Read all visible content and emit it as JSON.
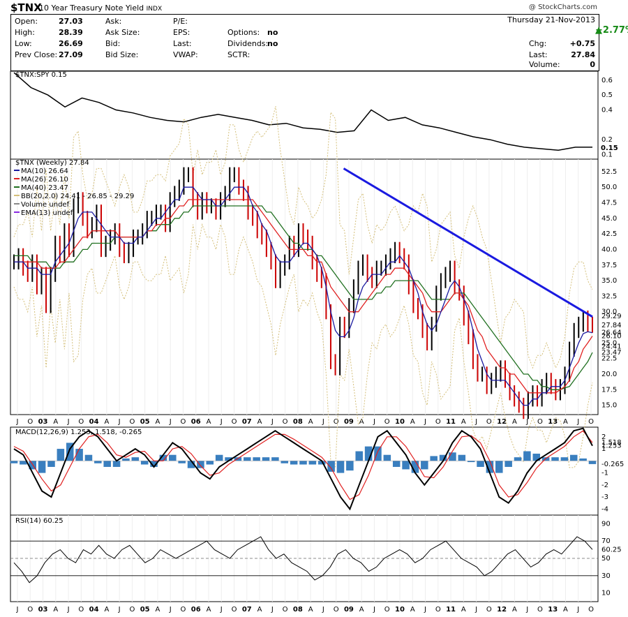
{
  "header": {
    "symbol": "$TNX",
    "name": "10 Year Treasury Note Yield",
    "exchange": "INDX",
    "credit": "@ StockCharts.com",
    "date": "Thursday  21-Nov-2013",
    "pct_change": "+2.77%",
    "quote": [
      {
        "label": "Open:",
        "value": "27.03"
      },
      {
        "label": "High:",
        "value": "28.39"
      },
      {
        "label": "Low:",
        "value": "26.69"
      },
      {
        "label": "Prev Close:",
        "value": "27.09"
      },
      {
        "label": "Ask:",
        "value": ""
      },
      {
        "label": "Ask Size:",
        "value": ""
      },
      {
        "label": "Bid:",
        "value": ""
      },
      {
        "label": "Bid Size:",
        "value": ""
      },
      {
        "label": "P/E:",
        "value": ""
      },
      {
        "label": "EPS:",
        "value": ""
      },
      {
        "label": "Last:",
        "value": ""
      },
      {
        "label": "VWAP:",
        "value": ""
      },
      {
        "label": "",
        "value": ""
      },
      {
        "label": "Options:",
        "value": "no"
      },
      {
        "label": "Dividends:",
        "value": "no"
      },
      {
        "label": "SCTR:",
        "value": ""
      },
      {
        "label": "Chg:",
        "value": "+0.75"
      },
      {
        "label": "Last:",
        "value": "27.84"
      },
      {
        "label": "Volume:",
        "value": "0"
      }
    ]
  },
  "colors": {
    "price_up": "#000000",
    "price_down": "#cc0000",
    "ma10": "#1a1aa0",
    "ma26": "#e02020",
    "ma40": "#207020",
    "bb": "#d4bf7a",
    "trendline": "#1a1ae0",
    "macd_line": "#000000",
    "signal_line": "#e02020",
    "histogram": "#3a7fbf",
    "rsi": "#000000",
    "rsi_fill": "#7a3a3a",
    "ema13": "#8a2be2"
  },
  "x_axis_labels": [
    "J",
    "O",
    "03",
    "A",
    "J",
    "O",
    "04",
    "A",
    "J",
    "O",
    "05",
    "A",
    "J",
    "O",
    "06",
    "A",
    "J",
    "O",
    "07",
    "A",
    "J",
    "O",
    "08",
    "A",
    "J",
    "O",
    "09",
    "A",
    "J",
    "O",
    "10",
    "A",
    "J",
    "O",
    "11",
    "A",
    "J",
    "O",
    "12",
    "A",
    "J",
    "O",
    "13",
    "A",
    "J",
    "O"
  ],
  "chart_data": [
    {
      "type": "line",
      "title": "$TNX:SPY 0.15",
      "series": [
        {
          "name": "$TNX:SPY",
          "values": [
            0.65,
            0.55,
            0.5,
            0.42,
            0.48,
            0.45,
            0.4,
            0.38,
            0.35,
            0.33,
            0.32,
            0.35,
            0.37,
            0.35,
            0.33,
            0.3,
            0.31,
            0.28,
            0.27,
            0.25,
            0.26,
            0.4,
            0.33,
            0.35,
            0.3,
            0.28,
            0.25,
            0.22,
            0.2,
            0.17,
            0.15,
            0.14,
            0.13,
            0.15,
            0.15
          ]
        }
      ],
      "ylim": [
        0.07,
        0.66
      ],
      "yticks": [
        0.1,
        0.2,
        0.4,
        0.5,
        0.6
      ],
      "last_value_label": "0.15"
    },
    {
      "type": "line",
      "title": "$TNX (Weekly) 27.84",
      "legend": [
        {
          "name": "MA(10)",
          "value": "26.64"
        },
        {
          "name": "MA(26)",
          "value": "26.10"
        },
        {
          "name": "MA(40)",
          "value": "23.47"
        },
        {
          "name": "BB(20,2.0)",
          "value": "24.41 - 26.85 - 29.29"
        },
        {
          "name": "Volume",
          "value": "undef"
        },
        {
          "name": "EMA(13)",
          "value": "undef"
        }
      ],
      "price": [
        38,
        39,
        37,
        36,
        38,
        34,
        36,
        31,
        36,
        41,
        39,
        43,
        40,
        47,
        48,
        45,
        43,
        44,
        46,
        40,
        41,
        42,
        43,
        40,
        39,
        40,
        42,
        42,
        43,
        45,
        45,
        46,
        46,
        44,
        48,
        49,
        50,
        52,
        52,
        48,
        46,
        48,
        47,
        47,
        46,
        48,
        49,
        52,
        52,
        50,
        49,
        46,
        45,
        43,
        42,
        40,
        38,
        35,
        37,
        38,
        41,
        40,
        43,
        42,
        41,
        38,
        36,
        35,
        30,
        22,
        21,
        28,
        27,
        31,
        34,
        37,
        38,
        36,
        35,
        37,
        37,
        38,
        39,
        40,
        39,
        38,
        34,
        31,
        30,
        27,
        25,
        28,
        33,
        35,
        36,
        37,
        34,
        33,
        29,
        26,
        22,
        20,
        20,
        18,
        19,
        20,
        21,
        19,
        17,
        16,
        15,
        14,
        16,
        17,
        16,
        18,
        19,
        18,
        17,
        18,
        20,
        24,
        27,
        28,
        29,
        28,
        27.84
      ],
      "ma10": [
        38,
        38,
        38,
        37,
        37,
        37,
        36,
        36,
        36,
        38,
        39,
        40,
        41,
        43,
        45,
        46,
        46,
        46,
        45,
        44,
        43,
        42,
        42,
        42,
        41,
        41,
        41,
        42,
        42,
        43,
        44,
        45,
        45,
        46,
        47,
        48,
        48,
        50,
        50,
        50,
        49,
        48,
        48,
        48,
        47,
        47,
        48,
        49,
        50,
        50,
        50,
        49,
        47,
        46,
        44,
        43,
        41,
        39,
        38,
        38,
        38,
        39,
        40,
        41,
        41,
        40,
        39,
        37,
        34,
        30,
        27,
        26,
        26,
        27,
        29,
        32,
        34,
        35,
        36,
        36,
        36,
        37,
        38,
        38,
        39,
        38,
        37,
        35,
        33,
        30,
        28,
        27,
        28,
        30,
        32,
        34,
        35,
        34,
        32,
        30,
        27,
        24,
        22,
        20,
        19,
        19,
        19,
        19,
        18,
        17,
        16,
        15,
        15,
        16,
        16,
        17,
        17,
        18,
        18,
        18,
        19,
        21,
        23,
        25,
        26.5,
        26.8,
        26.64
      ],
      "ma26": [
        38,
        38,
        38,
        38,
        38,
        38,
        37,
        37,
        37,
        37,
        38,
        38,
        39,
        40,
        41,
        42,
        42,
        43,
        43,
        43,
        43,
        43,
        43,
        42,
        42,
        42,
        42,
        42,
        42,
        43,
        43,
        44,
        44,
        45,
        45,
        46,
        47,
        47,
        48,
        48,
        48,
        48,
        48,
        48,
        48,
        48,
        48,
        48,
        48,
        48,
        48,
        48,
        48,
        47,
        46,
        45,
        44,
        43,
        42,
        41,
        40,
        40,
        40,
        40,
        39,
        39,
        38,
        38,
        36,
        34,
        33,
        32,
        31,
        30,
        30,
        30,
        31,
        32,
        33,
        34,
        35,
        36,
        36,
        37,
        37,
        37,
        36,
        35,
        34,
        33,
        31,
        30,
        30,
        30,
        31,
        32,
        33,
        33,
        32,
        31,
        29,
        27,
        26,
        24,
        23,
        22,
        21,
        21,
        20,
        20,
        19,
        18,
        17,
        17,
        17,
        17,
        17,
        17,
        17,
        17.5,
        18,
        19,
        21,
        22,
        24,
        25,
        26.1
      ],
      "ma40": [
        39,
        39,
        39,
        39,
        38,
        38,
        38,
        38,
        37,
        37,
        37,
        38,
        38,
        38,
        39,
        40,
        40,
        41,
        41,
        41,
        41,
        41,
        42,
        42,
        42,
        42,
        42,
        42,
        42,
        43,
        43,
        43,
        44,
        44,
        44,
        45,
        45,
        46,
        46,
        47,
        47,
        47,
        47,
        47,
        47,
        47,
        47,
        47,
        47,
        47,
        47,
        47,
        47,
        47,
        47,
        46,
        46,
        45,
        44,
        43,
        42,
        41,
        41,
        40,
        40,
        40,
        39,
        39,
        38,
        37,
        36,
        35,
        34,
        33,
        32,
        32,
        32,
        32,
        32,
        33,
        33,
        34,
        34,
        35,
        35,
        35,
        35,
        35,
        35,
        34,
        33,
        32,
        32,
        32,
        32,
        32,
        33,
        33,
        33,
        32,
        31,
        30,
        29,
        28,
        27,
        26,
        25,
        24,
        23,
        22,
        21,
        20,
        20,
        19,
        19,
        18,
        18,
        17.5,
        17.5,
        17.5,
        17.8,
        18,
        19,
        20,
        21,
        22,
        23.47
      ],
      "trendline": [
        [
          0.57,
          53
        ],
        [
          1.0,
          29.2
        ]
      ],
      "right_axis_labels": [
        "52.5",
        "50.0",
        "47.5",
        "45.0",
        "42.5",
        "40.0",
        "37.5",
        "35.0",
        "32.5",
        "30.0",
        "29.29",
        "27.84",
        "26.64",
        "26.10",
        "25.0",
        "24.41",
        "23.47",
        "22.5",
        "20.0",
        "17.5",
        "15.0"
      ],
      "ylim": [
        13.5,
        54.5
      ]
    },
    {
      "type": "line",
      "title": "MACD(12,26,9) 1.253, 1.518, -0.265",
      "macd": [
        1,
        0.5,
        -1,
        -2.5,
        -3,
        -1,
        1,
        2,
        2.5,
        2,
        1,
        0,
        0.5,
        1,
        0.5,
        -0.5,
        0.5,
        1.5,
        1,
        0,
        -1,
        -1.5,
        -0.5,
        0,
        0.5,
        1,
        1.5,
        2,
        2.5,
        2,
        1.5,
        1,
        0.5,
        0,
        -1.5,
        -3,
        -4,
        -2,
        0,
        2,
        2.5,
        1.5,
        0.5,
        -1,
        -2,
        -1,
        0,
        1.5,
        2.5,
        2,
        1,
        -1,
        -3,
        -3.5,
        -2.5,
        -1,
        0,
        0.5,
        1,
        1.5,
        2.5,
        2.7,
        1.253
      ],
      "signal": [
        1.2,
        0.8,
        -0.3,
        -1.5,
        -2.5,
        -2,
        -0.5,
        1,
        2,
        2.2,
        1.5,
        0.5,
        0.3,
        0.7,
        0.8,
        0,
        0,
        1,
        1.2,
        0.6,
        -0.4,
        -1.2,
        -1,
        -0.3,
        0.2,
        0.7,
        1.2,
        1.7,
        2.2,
        2.2,
        1.8,
        1.3,
        0.8,
        0.3,
        -0.6,
        -2,
        -3.2,
        -2.8,
        -1.2,
        0.8,
        2,
        2,
        1.2,
        0,
        -1.3,
        -1.4,
        -0.5,
        0.8,
        2,
        2.1,
        1.5,
        0,
        -2,
        -3,
        -2.8,
        -1.8,
        -0.6,
        0.2,
        0.7,
        1.2,
        2,
        2.5,
        1.518
      ],
      "hist_last_label": "-0.265",
      "axis_labels": [
        "2",
        "1.518",
        "1.253",
        "-0.265",
        "-1",
        "-2",
        "-3",
        "-4",
        "1"
      ],
      "ylim": [
        -4.5,
        2.8
      ]
    },
    {
      "type": "line",
      "title": "RSI(14) 60.25",
      "values": [
        45,
        35,
        22,
        30,
        45,
        55,
        60,
        50,
        45,
        60,
        55,
        65,
        55,
        50,
        60,
        65,
        55,
        45,
        50,
        60,
        55,
        50,
        55,
        60,
        65,
        70,
        60,
        55,
        50,
        60,
        65,
        70,
        75,
        60,
        50,
        55,
        45,
        40,
        35,
        25,
        30,
        40,
        55,
        60,
        50,
        45,
        35,
        40,
        50,
        55,
        60,
        55,
        45,
        50,
        60,
        65,
        70,
        60,
        50,
        45,
        40,
        30,
        35,
        45,
        55,
        60,
        50,
        40,
        45,
        55,
        60,
        55,
        65,
        75,
        70,
        60.25
      ],
      "axis_labels": [
        "90",
        "70",
        "60.25",
        "50",
        "30",
        "10"
      ],
      "ylim": [
        0,
        100
      ],
      "levels": [
        30,
        70
      ]
    }
  ]
}
